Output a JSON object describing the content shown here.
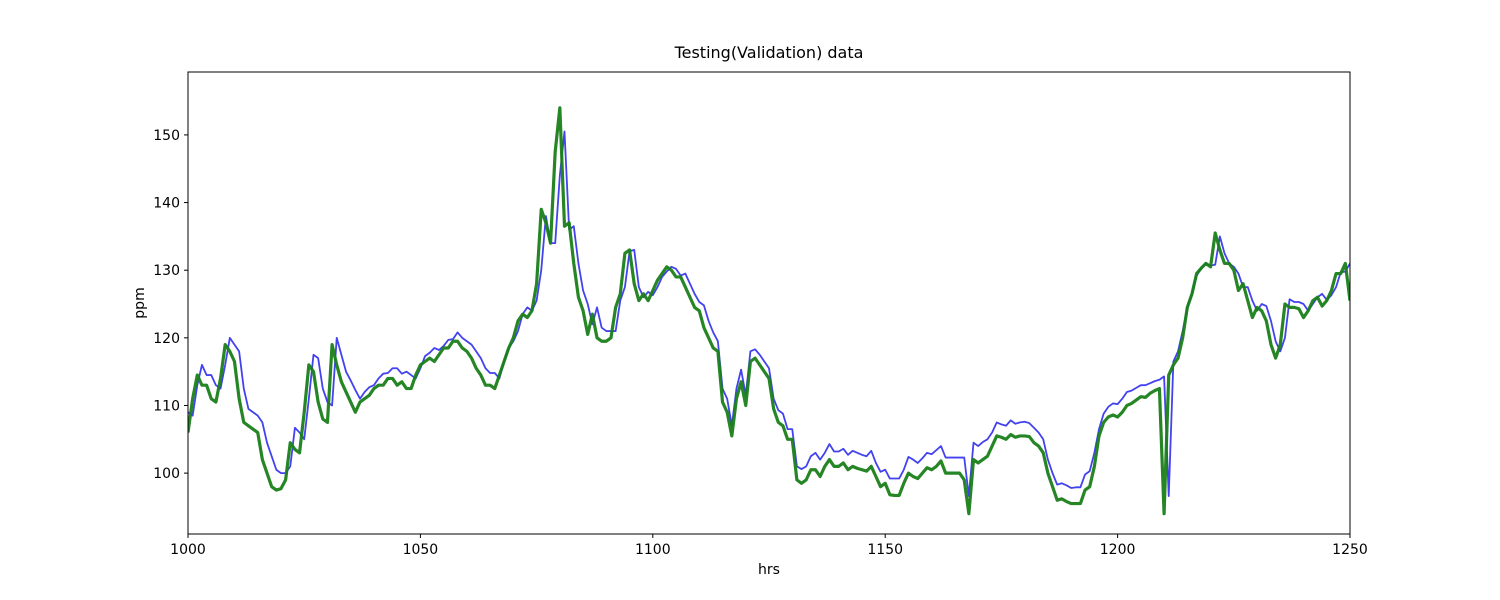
{
  "chart_data": {
    "type": "line",
    "title": "Testing(Validation) data",
    "x_label": "hrs",
    "y_label": "ppm",
    "xlim": [
      1000,
      1250
    ],
    "ylim": [
      91,
      159.3
    ],
    "xticks": [
      1000,
      1050,
      1100,
      1150,
      1200,
      1250
    ],
    "yticks": [
      100,
      110,
      120,
      130,
      140,
      150
    ],
    "grid": false,
    "x": [
      1000,
      1001,
      1002,
      1003,
      1004,
      1005,
      1006,
      1007,
      1008,
      1009,
      1010,
      1011,
      1012,
      1013,
      1014,
      1015,
      1016,
      1017,
      1018,
      1019,
      1020,
      1021,
      1022,
      1023,
      1024,
      1025,
      1026,
      1027,
      1028,
      1029,
      1030,
      1031,
      1032,
      1033,
      1034,
      1035,
      1036,
      1037,
      1038,
      1039,
      1040,
      1041,
      1042,
      1043,
      1044,
      1045,
      1046,
      1047,
      1048,
      1049,
      1050,
      1051,
      1052,
      1053,
      1054,
      1055,
      1056,
      1057,
      1058,
      1059,
      1060,
      1061,
      1062,
      1063,
      1064,
      1065,
      1066,
      1067,
      1068,
      1069,
      1070,
      1071,
      1072,
      1073,
      1074,
      1075,
      1076,
      1077,
      1078,
      1079,
      1080,
      1081,
      1082,
      1083,
      1084,
      1085,
      1086,
      1087,
      1088,
      1089,
      1090,
      1091,
      1092,
      1093,
      1094,
      1095,
      1096,
      1097,
      1098,
      1099,
      1100,
      1101,
      1102,
      1103,
      1104,
      1105,
      1106,
      1107,
      1108,
      1109,
      1110,
      1111,
      1112,
      1113,
      1114,
      1115,
      1116,
      1117,
      1118,
      1119,
      1120,
      1121,
      1122,
      1123,
      1124,
      1125,
      1126,
      1127,
      1128,
      1129,
      1130,
      1131,
      1132,
      1133,
      1134,
      1135,
      1136,
      1137,
      1138,
      1139,
      1140,
      1141,
      1142,
      1143,
      1144,
      1145,
      1146,
      1147,
      1148,
      1149,
      1150,
      1151,
      1152,
      1153,
      1154,
      1155,
      1156,
      1157,
      1158,
      1159,
      1160,
      1161,
      1162,
      1163,
      1164,
      1165,
      1166,
      1167,
      1168,
      1169,
      1170,
      1171,
      1172,
      1173,
      1174,
      1175,
      1176,
      1177,
      1178,
      1179,
      1180,
      1181,
      1182,
      1183,
      1184,
      1185,
      1186,
      1187,
      1188,
      1189,
      1190,
      1191,
      1192,
      1193,
      1194,
      1195,
      1196,
      1197,
      1198,
      1199,
      1200,
      1201,
      1202,
      1203,
      1204,
      1205,
      1206,
      1207,
      1208,
      1209,
      1210,
      1211,
      1212,
      1213,
      1214,
      1215,
      1216,
      1217,
      1218,
      1219,
      1220,
      1221,
      1222,
      1223,
      1224,
      1225,
      1226,
      1227,
      1228,
      1229,
      1230,
      1231,
      1232,
      1233,
      1234,
      1235,
      1236,
      1237,
      1238,
      1239,
      1240,
      1241,
      1242,
      1243,
      1244,
      1245,
      1246,
      1247,
      1248,
      1249,
      1250
    ],
    "series": [
      {
        "color": "#3838ee",
        "width": 1.8,
        "values": [
          109,
          108.5,
          113,
          116,
          114.5,
          114.5,
          113,
          112.5,
          116,
          120,
          119,
          118,
          112.5,
          109.5,
          109,
          108.5,
          107.5,
          104.5,
          102.5,
          100.5,
          100,
          100,
          101,
          106.7,
          106,
          105,
          111,
          117.5,
          117,
          112.5,
          110.5,
          110,
          120,
          117.5,
          115,
          113.7,
          112.3,
          111,
          112,
          112.7,
          113,
          114,
          114.7,
          114.8,
          115.5,
          115.5,
          114.7,
          115,
          114.5,
          114,
          115.5,
          117.3,
          117.8,
          118.5,
          118.2,
          118.8,
          119.7,
          119.8,
          120.8,
          120,
          119.5,
          119,
          118,
          117,
          115.5,
          114.8,
          114.8,
          114,
          116.5,
          118.5,
          119.5,
          121,
          123.5,
          124.5,
          124,
          125.5,
          130,
          138,
          134,
          134,
          144,
          150.5,
          136,
          136.5,
          131,
          127,
          125,
          122,
          124.5,
          121.5,
          121,
          121,
          121,
          125.5,
          127.5,
          132.8,
          133,
          127.5,
          126,
          126.8,
          126.3,
          127.5,
          129,
          129.8,
          130.5,
          130.2,
          129.2,
          129.5,
          128,
          126.5,
          125.3,
          124.8,
          122.5,
          120.8,
          119.5,
          112.5,
          111,
          107,
          112.5,
          115.3,
          111.5,
          118,
          118.3,
          117.5,
          116.5,
          115.5,
          111,
          109.3,
          108.8,
          106.5,
          106.5,
          101,
          100.6,
          101,
          102.5,
          103,
          102,
          103,
          104.3,
          103.2,
          103.2,
          103.6,
          102.7,
          103.3,
          103,
          102.7,
          102.5,
          103.3,
          101.5,
          100.2,
          100.5,
          99.2,
          99.2,
          99.2,
          100.5,
          102.4,
          102,
          101.5,
          102.2,
          103,
          102.8,
          103.4,
          104,
          102.3,
          102.3,
          102.3,
          102.3,
          102.3,
          96.6,
          104.5,
          104,
          104.6,
          105,
          106,
          107.5,
          107.2,
          107,
          107.8,
          107.3,
          107.5,
          107.6,
          107.4,
          106.7,
          106,
          105,
          102,
          100,
          98.3,
          98.5,
          98.2,
          97.8,
          97.9,
          97.9,
          99.8,
          100.3,
          103,
          106.5,
          108.8,
          109.8,
          110.3,
          110.2,
          111,
          112,
          112.2,
          112.6,
          113,
          113,
          113.3,
          113.6,
          113.8,
          114.3,
          96.6,
          116.5,
          118,
          121,
          124.5,
          126.5,
          129.2,
          130.3,
          131,
          130.7,
          130.8,
          135,
          132.5,
          131,
          130.5,
          129.5,
          127.5,
          127.5,
          125.5,
          124,
          125,
          124.7,
          122.5,
          119.5,
          118,
          120,
          125.7,
          125.3,
          125.3,
          125,
          124,
          125,
          126,
          126.5,
          125.6,
          126.3,
          127.5,
          129.7,
          129.8,
          131
        ]
      },
      {
        "color": "#1a801a",
        "width": 3.2,
        "values": [
          106,
          111,
          114.5,
          113,
          113,
          111,
          110.5,
          114,
          119,
          118,
          116.5,
          111,
          107.5,
          107,
          106.5,
          106,
          102,
          100,
          98,
          97.5,
          97.7,
          99,
          104.5,
          103.5,
          103,
          109,
          116,
          115,
          110.5,
          108,
          107.5,
          119,
          116,
          113.5,
          112,
          110.5,
          109,
          110.5,
          111,
          111.5,
          112.5,
          113,
          113,
          114,
          114,
          113,
          113.5,
          112.5,
          112.5,
          114.5,
          116,
          116.5,
          117,
          116.5,
          117.5,
          118.5,
          118.5,
          119.5,
          119.5,
          118.5,
          118,
          117,
          115.5,
          114.5,
          113,
          113,
          112.5,
          114.5,
          116.5,
          118.5,
          120,
          122.5,
          123.5,
          123,
          124,
          128,
          139,
          137,
          134,
          147.5,
          154,
          136.5,
          137,
          131,
          126,
          124,
          120.5,
          123.5,
          120,
          119.5,
          119.5,
          120,
          124.5,
          126.5,
          132.5,
          133,
          128,
          125.5,
          126.5,
          125.5,
          127,
          128.5,
          129.5,
          130.5,
          130,
          129,
          129,
          127.5,
          126,
          124.5,
          124,
          121.5,
          120,
          118.5,
          118,
          110.5,
          109,
          105.5,
          111,
          113.5,
          110,
          116.5,
          117,
          116,
          115,
          114,
          109.5,
          107.5,
          107,
          105,
          105,
          99,
          98.5,
          99,
          100.5,
          100.5,
          99.5,
          101,
          102,
          101,
          101,
          101.5,
          100.5,
          101,
          100.7,
          100.5,
          100.3,
          101,
          99.5,
          98,
          98.5,
          96.8,
          96.7,
          96.7,
          98.5,
          100,
          99.5,
          99.2,
          100,
          100.8,
          100.5,
          101,
          101.8,
          100,
          100,
          100,
          100,
          99,
          94,
          102,
          101.5,
          102,
          102.5,
          104,
          105.5,
          105.3,
          105,
          105.7,
          105.3,
          105.5,
          105.5,
          105.4,
          104.5,
          104,
          103,
          100,
          98,
          96,
          96.2,
          95.8,
          95.5,
          95.5,
          95.5,
          97.5,
          98,
          101,
          105.5,
          107.5,
          108.3,
          108.6,
          108.3,
          109,
          110,
          110.3,
          110.8,
          111.3,
          111.2,
          111.8,
          112.2,
          112.5,
          94,
          114.5,
          116,
          117,
          120,
          124.5,
          126.5,
          129.5,
          130.3,
          131,
          130.5,
          135.5,
          133,
          131,
          131,
          130,
          127,
          128,
          125.5,
          123,
          124.5,
          124,
          122.5,
          119,
          117,
          119,
          125,
          124.5,
          124.5,
          124.3,
          123,
          124,
          125.5,
          126,
          124.7,
          125.5,
          127,
          129.5,
          129.5,
          131,
          125.5
        ]
      }
    ]
  }
}
